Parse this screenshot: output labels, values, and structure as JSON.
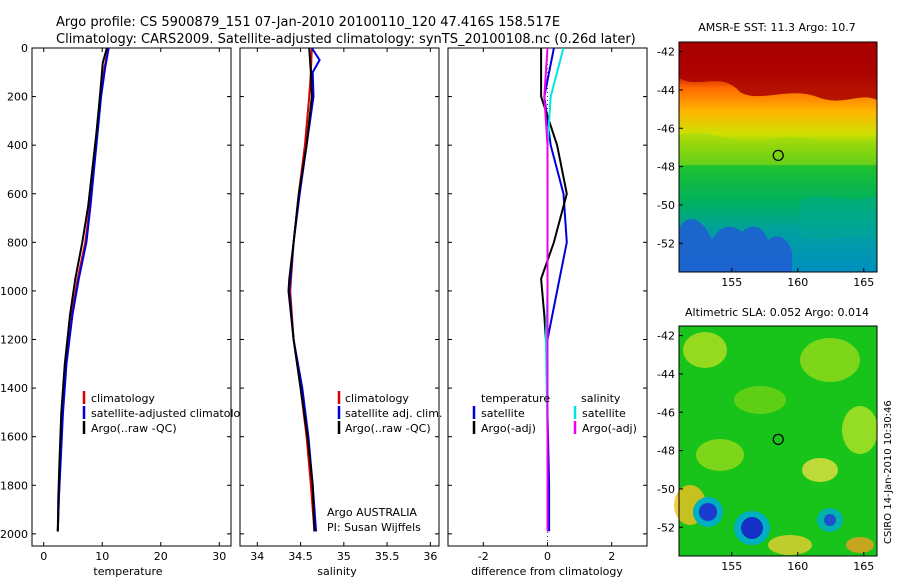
{
  "header": {
    "line1": "Argo profile: CS 5900879_151 07-Jan-2010 20100110_120 47.416S 158.517E",
    "line2": "Climatology: CARS2009. Satellite-adjusted climatology: synTS_20100108.nc (0.26d later)"
  },
  "chart_data": [
    {
      "id": "temperature",
      "type": "line",
      "xlabel": "temperature",
      "ylabel": "",
      "xlim": [
        -2,
        32
      ],
      "ylim": [
        2050,
        0
      ],
      "xticks": [
        0,
        10,
        20,
        30
      ],
      "yticks": [
        0,
        200,
        400,
        600,
        800,
        1000,
        1200,
        1400,
        1600,
        1800,
        2000
      ],
      "legend": [
        "climatology",
        "satellite-adjusted climatology",
        "Argo(..raw -QC)"
      ],
      "series": [
        {
          "name": "climatology",
          "color": "#dd0000",
          "points": [
            [
              11,
              0
            ],
            [
              10.4,
              80
            ],
            [
              9.7,
              200
            ],
            [
              9.1,
              350
            ],
            [
              8.5,
              500
            ],
            [
              7.9,
              650
            ],
            [
              7.1,
              800
            ],
            [
              5.8,
              950
            ],
            [
              4.8,
              1100
            ],
            [
              3.8,
              1300
            ],
            [
              3.2,
              1500
            ],
            [
              2.8,
              1700
            ],
            [
              2.6,
              1850
            ],
            [
              2.4,
              1990
            ]
          ]
        },
        {
          "name": "satellite-adjusted climatology",
          "color": "#0000dd",
          "points": [
            [
              11.1,
              0
            ],
            [
              10.5,
              80
            ],
            [
              9.8,
              200
            ],
            [
              9.2,
              350
            ],
            [
              8.6,
              500
            ],
            [
              8.0,
              650
            ],
            [
              7.3,
              800
            ],
            [
              6.0,
              950
            ],
            [
              4.9,
              1100
            ],
            [
              3.9,
              1300
            ],
            [
              3.3,
              1500
            ],
            [
              2.9,
              1700
            ],
            [
              2.6,
              1850
            ],
            [
              2.4,
              1990
            ]
          ]
        },
        {
          "name": "Argo(..raw -QC)",
          "color": "#000000",
          "points": [
            [
              10.8,
              0
            ],
            [
              10.1,
              60
            ],
            [
              9.6,
              200
            ],
            [
              9.0,
              350
            ],
            [
              8.3,
              500
            ],
            [
              7.6,
              650
            ],
            [
              6.6,
              800
            ],
            [
              5.4,
              950
            ],
            [
              4.5,
              1100
            ],
            [
              3.6,
              1300
            ],
            [
              3.0,
              1500
            ],
            [
              2.7,
              1700
            ],
            [
              2.5,
              1850
            ],
            [
              2.4,
              1990
            ]
          ]
        }
      ]
    },
    {
      "id": "salinity",
      "type": "line",
      "xlabel": "salinity",
      "ylabel": "",
      "xlim": [
        33.8,
        36.1
      ],
      "ylim": [
        2050,
        0
      ],
      "xticks": [
        34,
        34.5,
        35,
        35.5,
        36
      ],
      "legend": [
        "climatology",
        "satellite adj. clim.",
        "Argo(..raw -QC)"
      ],
      "annotations": [
        "Argo AUSTRALIA",
        "PI: Susan Wijffels"
      ],
      "series": [
        {
          "name": "climatology",
          "color": "#dd0000",
          "points": [
            [
              34.63,
              0
            ],
            [
              34.62,
              100
            ],
            [
              34.6,
              200
            ],
            [
              34.55,
              400
            ],
            [
              34.48,
              600
            ],
            [
              34.42,
              800
            ],
            [
              34.38,
              1000
            ],
            [
              34.42,
              1200
            ],
            [
              34.5,
              1400
            ],
            [
              34.57,
              1600
            ],
            [
              34.62,
              1800
            ],
            [
              34.66,
              1990
            ]
          ]
        },
        {
          "name": "satellite adj. clim.",
          "color": "#0000dd",
          "points": [
            [
              34.63,
              0
            ],
            [
              34.72,
              50
            ],
            [
              34.64,
              100
            ],
            [
              34.65,
              200
            ],
            [
              34.57,
              400
            ],
            [
              34.49,
              600
            ],
            [
              34.42,
              800
            ],
            [
              34.37,
              1000
            ],
            [
              34.42,
              1200
            ],
            [
              34.52,
              1400
            ],
            [
              34.59,
              1600
            ],
            [
              34.64,
              1800
            ],
            [
              34.68,
              1990
            ]
          ]
        },
        {
          "name": "Argo(..raw -QC)",
          "color": "#000000",
          "points": [
            [
              34.6,
              0
            ],
            [
              34.62,
              100
            ],
            [
              34.63,
              200
            ],
            [
              34.57,
              400
            ],
            [
              34.48,
              600
            ],
            [
              34.42,
              800
            ],
            [
              34.37,
              950
            ],
            [
              34.36,
              1000
            ],
            [
              34.42,
              1200
            ],
            [
              34.5,
              1400
            ],
            [
              34.58,
              1600
            ],
            [
              34.64,
              1800
            ],
            [
              34.66,
              1990
            ]
          ]
        }
      ]
    },
    {
      "id": "difference",
      "type": "line",
      "xlabel": "difference from climatology",
      "ylabel": "",
      "xlim": [
        -3.1,
        3.1
      ],
      "ylim": [
        2050,
        0
      ],
      "xticks": [
        -2,
        0,
        2
      ],
      "legend_groups": [
        {
          "title": "temperature",
          "items": [
            "satellite",
            "Argo(-adj)"
          ]
        },
        {
          "title": "salinity",
          "items": [
            "satellite",
            "Argo(-adj)"
          ]
        }
      ],
      "series": [
        {
          "name": "temperature satellite",
          "color": "#0000dd",
          "points": [
            [
              0.2,
              0
            ],
            [
              -0.1,
              200
            ],
            [
              0.1,
              400
            ],
            [
              0.5,
              600
            ],
            [
              0.6,
              800
            ],
            [
              0.3,
              1000
            ],
            [
              0,
              1200
            ],
            [
              0,
              1500
            ],
            [
              0.05,
              1800
            ],
            [
              0.05,
              1990
            ]
          ]
        },
        {
          "name": "temperature Argo(-adj)",
          "color": "#000000",
          "points": [
            [
              -0.2,
              0
            ],
            [
              -0.2,
              200
            ],
            [
              0.3,
              400
            ],
            [
              0.6,
              600
            ],
            [
              0.2,
              800
            ],
            [
              -0.2,
              950
            ],
            [
              -0.1,
              1100
            ],
            [
              0,
              1300
            ],
            [
              0,
              1500
            ],
            [
              0,
              1990
            ]
          ]
        },
        {
          "name": "salinity satellite",
          "color": "#00e6e6",
          "points": [
            [
              0.5,
              0
            ],
            [
              0.1,
              200
            ],
            [
              0,
              400
            ],
            [
              0,
              600
            ],
            [
              0,
              800
            ],
            [
              0,
              1000
            ],
            [
              -0.05,
              1200
            ],
            [
              0,
              1600
            ],
            [
              0,
              1990
            ]
          ]
        },
        {
          "name": "salinity Argo(-adj)",
          "color": "#ee00ee",
          "points": [
            [
              0,
              0
            ],
            [
              -0.1,
              200
            ],
            [
              0,
              400
            ],
            [
              0,
              800
            ],
            [
              0,
              1200
            ],
            [
              0,
              1600
            ],
            [
              0,
              1990
            ]
          ]
        }
      ]
    },
    {
      "id": "sst-map",
      "type": "heatmap",
      "title": "AMSR-E SST: 11.3 Argo: 10.7",
      "xlim": [
        151,
        166
      ],
      "ylim": [
        -53.5,
        -41.5
      ],
      "xticks": [
        155,
        160,
        165
      ],
      "yticks": [
        -42,
        -44,
        -46,
        -48,
        -50,
        -52
      ],
      "marker": {
        "lon": 158.517,
        "lat": -47.416
      }
    },
    {
      "id": "sla-map",
      "type": "heatmap",
      "title": "Altimetric SLA: 0.052 Argo: 0.014",
      "xlim": [
        151,
        166
      ],
      "ylim": [
        -53.5,
        -41.5
      ],
      "xticks": [
        155,
        160,
        165
      ],
      "yticks": [
        -42,
        -44,
        -46,
        -48,
        -50,
        -52
      ],
      "marker": {
        "lon": 158.517,
        "lat": -47.416
      }
    }
  ],
  "stamp": "CSIRO 14-Jan-2010 10:30:46"
}
